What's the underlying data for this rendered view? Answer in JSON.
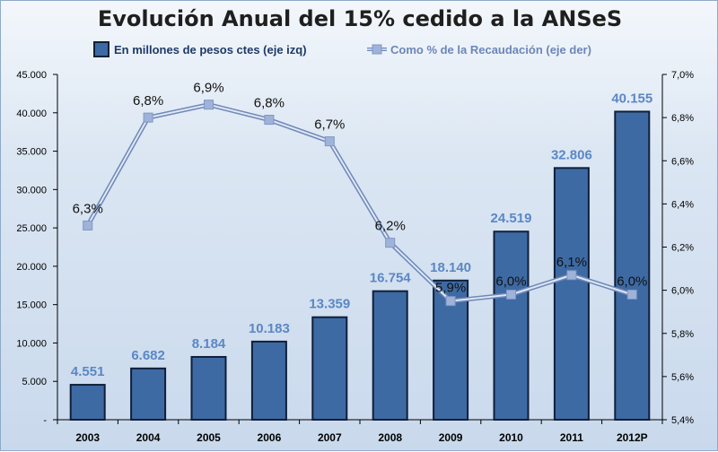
{
  "chart_data": {
    "type": "bar+line",
    "title": "Evolución Anual del 15% cedido a la ANSeS",
    "categories": [
      "2003",
      "2004",
      "2005",
      "2006",
      "2007",
      "2008",
      "2009",
      "2010",
      "2011",
      "2012P"
    ],
    "series": [
      {
        "name": "En millones de pesos ctes (eje izq)",
        "type": "bar",
        "axis": "left",
        "values": [
          4551,
          6682,
          8184,
          10183,
          13359,
          16754,
          18140,
          24519,
          32806,
          40155
        ],
        "labels": [
          "4.551",
          "6.682",
          "8.184",
          "10.183",
          "13.359",
          "16.754",
          "18.140",
          "24.519",
          "32.806",
          "40.155"
        ]
      },
      {
        "name": "Como % de la Recaudación (eje der)",
        "type": "line",
        "axis": "right",
        "values": [
          6.3,
          6.8,
          6.86,
          6.79,
          6.69,
          6.22,
          5.95,
          5.98,
          6.07,
          5.98
        ],
        "labels": [
          "6,3%",
          "6,8%",
          "6,9%",
          "6,8%",
          "6,7%",
          "6,2%",
          "5,9%",
          "6,0%",
          "6,1%",
          "6,0%"
        ]
      }
    ],
    "y_left": {
      "min": 0,
      "max": 45000,
      "ticks": [
        0,
        5000,
        10000,
        15000,
        20000,
        25000,
        30000,
        35000,
        40000,
        45000
      ],
      "tick_labels": [
        "-",
        "5.000",
        "10.000",
        "15.000",
        "20.000",
        "25.000",
        "30.000",
        "35.000",
        "40.000",
        "45.000"
      ]
    },
    "y_right": {
      "min": 5.4,
      "max": 7.0,
      "ticks": [
        5.4,
        5.6,
        5.8,
        6.0,
        6.2,
        6.4,
        6.6,
        6.8,
        7.0
      ],
      "tick_labels": [
        "5,4%",
        "5,6%",
        "5,8%",
        "6,0%",
        "6,2%",
        "6,4%",
        "6,6%",
        "6,8%",
        "7,0%"
      ]
    },
    "legend_position": "top",
    "grid": false,
    "colors": {
      "bar": "#3e6aa3",
      "bar_border": "#0f1f3a",
      "line": "#9fb3d9",
      "bar_label": "#5b87c4"
    }
  }
}
